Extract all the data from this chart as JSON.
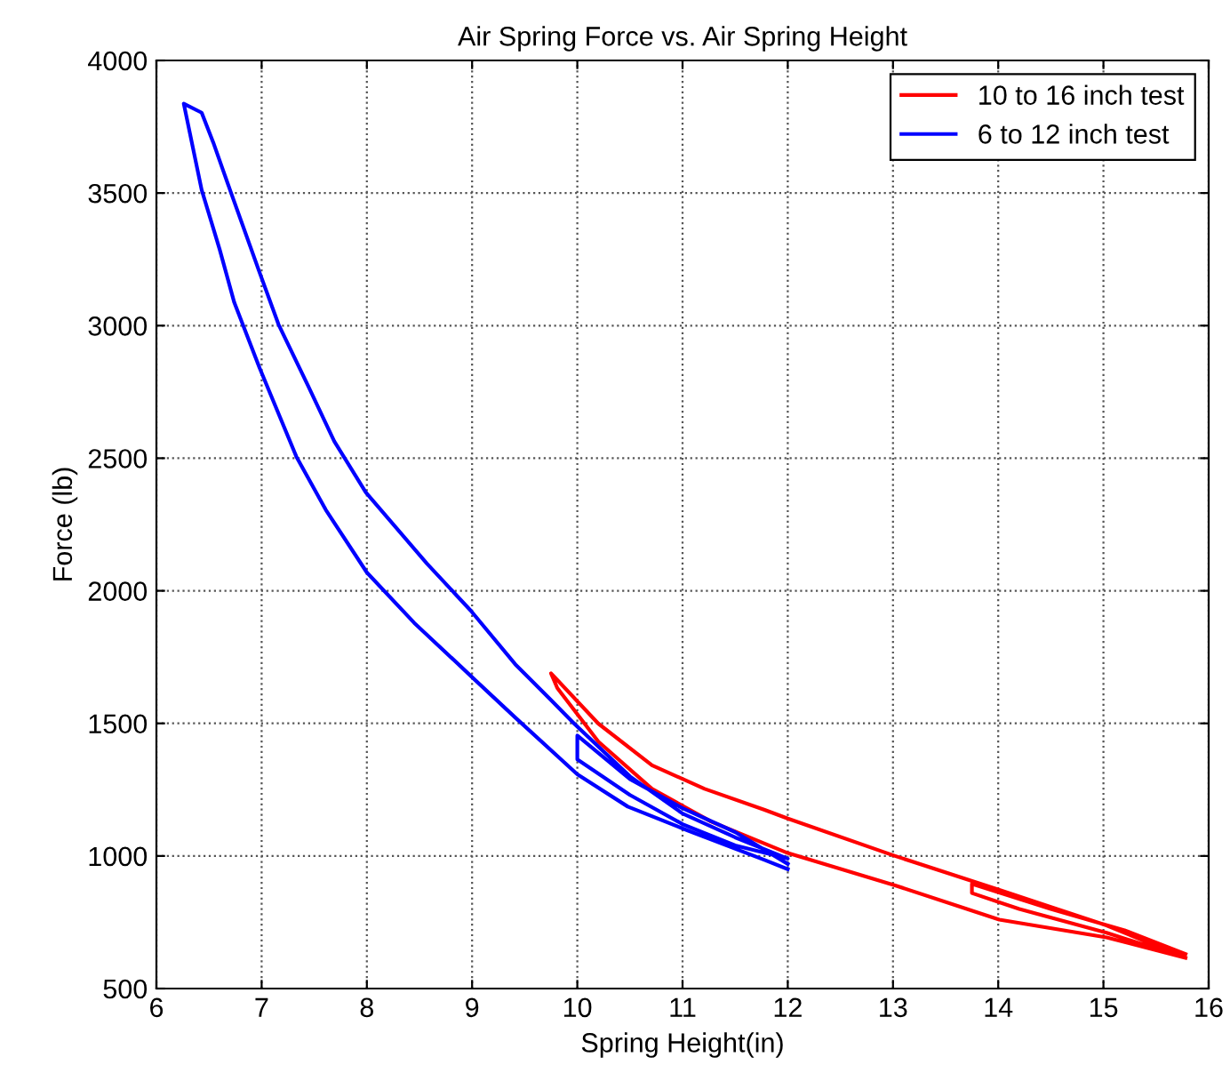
{
  "chart_data": {
    "type": "line",
    "title": "Air Spring Force vs. Air Spring Height",
    "xlabel": "Spring Height(in)",
    "ylabel": "Force (lb)",
    "series": [
      {
        "name": "10 to 16 inch test",
        "color": "#ff0000",
        "x": [
          15.78,
          15.03,
          14.01,
          13.02,
          12.0,
          11.27,
          10.71,
          10.2,
          9.81,
          9.75,
          10.2,
          10.71,
          11.21,
          11.78,
          12.0,
          13.02,
          14.01,
          15.03,
          15.78,
          15.03,
          14.2,
          13.75,
          13.75,
          14.5,
          15.2,
          15.78
        ],
        "values": [
          616,
          693,
          760,
          889,
          1011,
          1130,
          1253,
          1431,
          1633,
          1689,
          1499,
          1342,
          1253,
          1174,
          1141,
          1000,
          872,
          738,
          616,
          710,
          800,
          860,
          895,
          800,
          720,
          630
        ]
      },
      {
        "name": "6 to 12 inch test",
        "color": "#0000ff",
        "x": [
          12.0,
          11.78,
          11.05,
          10.48,
          10.0,
          9.41,
          8.99,
          8.45,
          8.0,
          7.61,
          7.33,
          6.98,
          6.74,
          6.6,
          6.43,
          6.26,
          6.43,
          6.54,
          6.71,
          6.98,
          7.16,
          7.44,
          7.69,
          7.99,
          8.57,
          8.99,
          9.41,
          9.75,
          9.97,
          10.5,
          11.0,
          11.5,
          12.0,
          11.5,
          11.0,
          10.5,
          10.0,
          10.0,
          10.5,
          11.0,
          11.5,
          12.0
        ],
        "values": [
          950,
          985,
          1096,
          1186,
          1308,
          1522,
          1678,
          1879,
          2069,
          2305,
          2506,
          2841,
          3087,
          3289,
          3512,
          3837,
          3803,
          3691,
          3500,
          3201,
          3005,
          2774,
          2564,
          2371,
          2103,
          1924,
          1723,
          1588,
          1499,
          1300,
          1160,
          1070,
          990,
          1040,
          1120,
          1230,
          1364,
          1454,
          1290,
          1180,
          1090,
          970
        ]
      }
    ],
    "xlim": [
      6,
      16
    ],
    "ylim": [
      500,
      4000
    ],
    "xticks": [
      6,
      7,
      8,
      9,
      10,
      11,
      12,
      13,
      14,
      15,
      16
    ],
    "yticks": [
      500,
      1000,
      1500,
      2000,
      2500,
      3000,
      3500,
      4000
    ],
    "grid": true,
    "legend": "top right",
    "marker": "none",
    "line_style": "solid"
  }
}
